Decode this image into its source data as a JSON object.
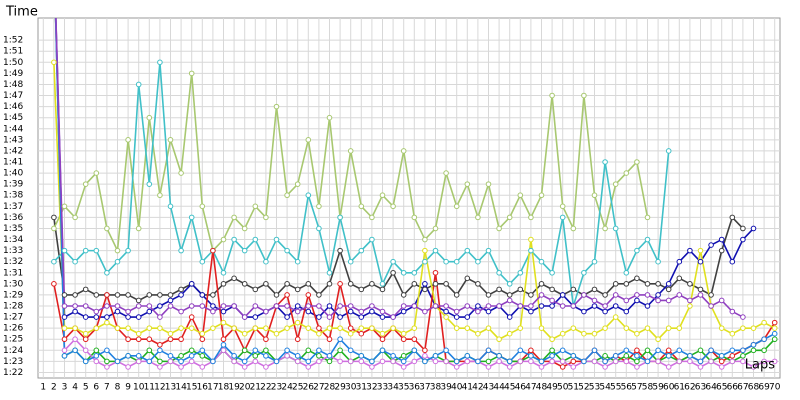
{
  "chart_data": {
    "type": "line",
    "y_label": "Time",
    "x_label": "Laps",
    "grid": true,
    "x": [
      1,
      2,
      3,
      4,
      5,
      6,
      7,
      8,
      9,
      10,
      11,
      12,
      13,
      14,
      15,
      16,
      17,
      18,
      19,
      20,
      21,
      22,
      23,
      24,
      25,
      26,
      27,
      28,
      29,
      30,
      31,
      32,
      33,
      34,
      35,
      36,
      37,
      38,
      39,
      40,
      41,
      42,
      43,
      44,
      45,
      46,
      47,
      48,
      49,
      50,
      51,
      52,
      53,
      54,
      55,
      56,
      57,
      58,
      59,
      60,
      61,
      62,
      63,
      64,
      65,
      66,
      67,
      68,
      69,
      70
    ],
    "xlim": [
      0.5,
      70.5
    ],
    "xticks": [
      1,
      2,
      3,
      4,
      5,
      6,
      7,
      8,
      9,
      10,
      11,
      12,
      13,
      14,
      15,
      16,
      17,
      18,
      19,
      20,
      21,
      22,
      23,
      24,
      25,
      26,
      27,
      28,
      29,
      30,
      31,
      32,
      33,
      34,
      35,
      36,
      37,
      38,
      39,
      40,
      41,
      42,
      43,
      44,
      45,
      46,
      47,
      48,
      49,
      50,
      51,
      52,
      53,
      54,
      55,
      56,
      57,
      58,
      59,
      60,
      61,
      62,
      63,
      64,
      65,
      66,
      67,
      68,
      69,
      70
    ],
    "ylim": [
      81.5,
      114
    ],
    "yticks": [
      {
        "value": 82,
        "label": "1:22"
      },
      {
        "value": 83,
        "label": "1:23"
      },
      {
        "value": 84,
        "label": "1:24"
      },
      {
        "value": 85,
        "label": "1:25"
      },
      {
        "value": 86,
        "label": "1:26"
      },
      {
        "value": 87,
        "label": "1:27"
      },
      {
        "value": 88,
        "label": "1:28"
      },
      {
        "value": 89,
        "label": "1:29"
      },
      {
        "value": 90,
        "label": "1:30"
      },
      {
        "value": 91,
        "label": "1:31"
      },
      {
        "value": 92,
        "label": "1:32"
      },
      {
        "value": 93,
        "label": "1:33"
      },
      {
        "value": 94,
        "label": "1:34"
      },
      {
        "value": 95,
        "label": "1:35"
      },
      {
        "value": 96,
        "label": "1:36"
      },
      {
        "value": 97,
        "label": "1:37"
      },
      {
        "value": 98,
        "label": "1:38"
      },
      {
        "value": 99,
        "label": "1:39"
      },
      {
        "value": 100,
        "label": "1:40"
      },
      {
        "value": 101,
        "label": "1:41"
      },
      {
        "value": 102,
        "label": "1:42"
      },
      {
        "value": 103,
        "label": "1:43"
      },
      {
        "value": 104,
        "label": "1:44"
      },
      {
        "value": 105,
        "label": "1:45"
      },
      {
        "value": 106,
        "label": "1:46"
      },
      {
        "value": 107,
        "label": "1:47"
      },
      {
        "value": 108,
        "label": "1:48"
      },
      {
        "value": 109,
        "label": "1:49"
      },
      {
        "value": 110,
        "label": "1:50"
      },
      {
        "value": 111,
        "label": "1:51"
      },
      {
        "value": 112,
        "label": "1:52"
      }
    ],
    "series": [
      {
        "color": "#404040",
        "values": [
          null,
          96,
          89,
          89,
          89.5,
          89,
          89,
          89,
          89,
          88.5,
          89,
          89,
          89,
          89.5,
          90,
          89,
          89,
          90,
          90.5,
          90,
          89.5,
          90,
          89,
          90,
          89.5,
          90,
          89,
          90,
          93,
          90,
          89.5,
          90,
          89.5,
          91,
          89,
          90,
          89.5,
          90,
          90,
          89,
          90.5,
          90,
          89,
          89.5,
          89,
          89.5,
          89,
          90,
          89.5,
          89,
          89.5,
          89,
          89.5,
          89,
          90,
          90,
          90.5,
          90,
          90,
          89.5,
          90.5,
          90,
          89.5,
          89,
          93,
          96,
          95,
          null,
          null,
          null
        ]
      },
      {
        "color": "#1010b0",
        "values": [
          null,
          120,
          87,
          87.5,
          87,
          87,
          87,
          87.5,
          87,
          87,
          87.5,
          88,
          88.5,
          89,
          90,
          89,
          88,
          87.5,
          88,
          87,
          87,
          87.5,
          88,
          87,
          88,
          87.5,
          87,
          88,
          87,
          87.5,
          87,
          87.5,
          87,
          87,
          87.5,
          88,
          90,
          88,
          87.5,
          87,
          87,
          88,
          87.5,
          88,
          87,
          88,
          87.5,
          88,
          88,
          89,
          88,
          87.5,
          88,
          87.5,
          88,
          87.5,
          88.5,
          88,
          89,
          90,
          92,
          93,
          92,
          93.5,
          94,
          92,
          94,
          95,
          null,
          null
        ]
      },
      {
        "color": "#a8c870",
        "values": [
          null,
          95,
          97,
          96,
          99,
          100,
          95,
          93,
          103,
          95,
          105,
          98,
          103,
          100,
          109,
          97,
          93,
          94,
          96,
          95,
          97,
          96,
          106,
          98,
          99,
          103,
          97,
          105,
          96,
          102,
          97,
          96,
          98,
          97,
          102,
          96,
          94,
          95,
          100,
          97,
          99,
          96,
          99,
          95,
          96,
          98,
          96,
          98,
          107,
          97,
          95,
          107,
          98,
          95,
          99,
          100,
          101,
          96,
          null,
          null,
          null,
          null,
          null,
          null,
          null,
          null,
          null,
          null,
          null,
          null
        ]
      },
      {
        "color": "#40c0c8",
        "values": [
          null,
          92,
          93,
          92,
          93,
          93,
          91,
          92,
          93,
          108,
          99,
          110,
          97,
          93,
          96,
          92,
          93,
          91,
          94,
          93,
          94,
          92,
          94,
          93,
          92,
          98,
          95,
          91,
          96,
          92,
          93,
          94,
          90,
          92,
          91,
          91,
          92,
          93,
          92,
          92,
          93,
          92,
          93,
          91,
          90,
          91,
          93,
          92,
          91,
          96,
          88,
          91,
          92,
          101,
          95,
          91,
          93,
          94,
          92,
          102,
          null,
          null,
          null,
          null,
          null,
          null,
          null,
          null,
          null,
          null
        ]
      },
      {
        "color": "#e02020",
        "values": [
          null,
          90,
          85,
          86,
          85,
          86,
          89,
          86,
          85,
          85,
          85,
          84.5,
          85,
          85,
          87,
          85,
          93,
          85,
          86,
          84,
          86,
          85,
          88,
          89,
          85,
          89,
          86,
          85,
          90,
          86,
          85.5,
          86,
          85,
          86,
          85,
          85,
          84,
          91,
          83,
          83,
          83,
          83,
          84,
          83.5,
          83,
          83,
          84,
          83,
          83,
          82.5,
          83,
          83,
          84,
          83,
          83.5,
          83,
          84,
          83,
          83,
          84,
          83,
          83.5,
          83,
          84,
          83,
          83.5,
          84,
          84.5,
          85,
          86.5
        ]
      },
      {
        "color": "#20b020",
        "values": [
          null,
          120,
          83.5,
          84,
          83,
          84,
          83,
          83,
          83.5,
          83,
          84,
          83,
          83,
          83.5,
          84,
          83.5,
          83,
          84,
          83,
          84,
          83.5,
          84,
          83,
          83.5,
          83,
          84,
          83.5,
          83,
          84,
          83,
          83.5,
          83,
          84,
          83,
          83.5,
          84,
          83,
          83.5,
          83,
          83,
          83.5,
          83,
          83,
          83.5,
          83,
          83,
          83.5,
          83,
          84,
          83,
          83.5,
          83,
          83,
          83.5,
          83,
          83.5,
          83,
          84,
          83,
          83.5,
          83,
          83.5,
          84,
          83,
          83.5,
          83,
          83.5,
          84,
          84,
          85
        ]
      },
      {
        "color": "#d070e0",
        "values": [
          null,
          120,
          84,
          85,
          84,
          83,
          82.5,
          83,
          82.5,
          83,
          83,
          82.5,
          83,
          82.5,
          83,
          82.5,
          83,
          84,
          83,
          82.5,
          83,
          82.5,
          83,
          83.5,
          83,
          82.5,
          83,
          83.5,
          83,
          83,
          83,
          82.5,
          83,
          83,
          82.5,
          83,
          83.5,
          83,
          83,
          82.5,
          83,
          83,
          82.5,
          83,
          82.5,
          83,
          83,
          82.5,
          83,
          83,
          82.5,
          83,
          83,
          82.5,
          83,
          83,
          82.5,
          83,
          83,
          82.5,
          83,
          83,
          82.5,
          83,
          82.5,
          83,
          83,
          82.5,
          83,
          83
        ]
      },
      {
        "color": "#e0e020",
        "values": [
          null,
          110,
          86,
          86,
          85.5,
          86,
          86.5,
          86,
          86,
          85.5,
          86,
          86,
          85.5,
          86,
          86,
          85.5,
          86,
          86.5,
          86,
          85.5,
          86,
          86,
          85.5,
          86,
          86.5,
          86,
          85.5,
          86,
          86,
          85.5,
          86,
          86,
          85.5,
          86,
          85.5,
          86,
          93,
          88,
          87,
          86,
          86,
          85.5,
          86,
          85,
          85.5,
          86,
          94,
          86,
          85,
          85.5,
          86,
          85.5,
          85.5,
          86,
          87,
          86,
          85.5,
          86,
          85,
          86,
          86,
          88,
          93,
          88,
          86,
          85.5,
          86,
          86,
          86.5,
          86
        ]
      },
      {
        "color": "#2080e0",
        "values": [
          null,
          120,
          83.5,
          84,
          83,
          83.5,
          84,
          83,
          83.5,
          83.5,
          83,
          84,
          83.5,
          83,
          83.5,
          84,
          83,
          84.5,
          83.5,
          83,
          84,
          83.5,
          83,
          84,
          83.5,
          83,
          84,
          83.5,
          85,
          84,
          83.5,
          83,
          84,
          83.5,
          83,
          84,
          83,
          83.5,
          84,
          83,
          83.5,
          83,
          84,
          83.5,
          83,
          84,
          83.5,
          83,
          83.5,
          84,
          83.5,
          83,
          84,
          83,
          83.5,
          84,
          83.5,
          83,
          84,
          83.5,
          84,
          83.5,
          83,
          84,
          83.5,
          84,
          84,
          84.5,
          85,
          85.5
        ]
      },
      {
        "color": "#9040c0",
        "values": [
          null,
          120,
          88,
          88,
          88,
          87.5,
          88,
          88,
          87.5,
          88,
          88,
          87,
          88,
          87.5,
          88,
          88,
          87.5,
          88,
          88,
          87,
          88,
          87.5,
          88,
          88,
          87.5,
          88,
          88,
          87,
          88,
          88,
          87.5,
          88,
          87.5,
          87,
          88,
          88,
          87.5,
          88,
          88,
          87.5,
          88,
          87.5,
          88,
          88,
          88.5,
          88,
          88,
          89,
          88.5,
          88,
          88,
          89,
          88.5,
          88,
          89,
          88.5,
          89,
          89,
          88.5,
          88.5,
          89,
          88.5,
          89,
          88,
          88.5,
          87.5,
          87,
          null,
          null,
          null
        ]
      }
    ]
  }
}
